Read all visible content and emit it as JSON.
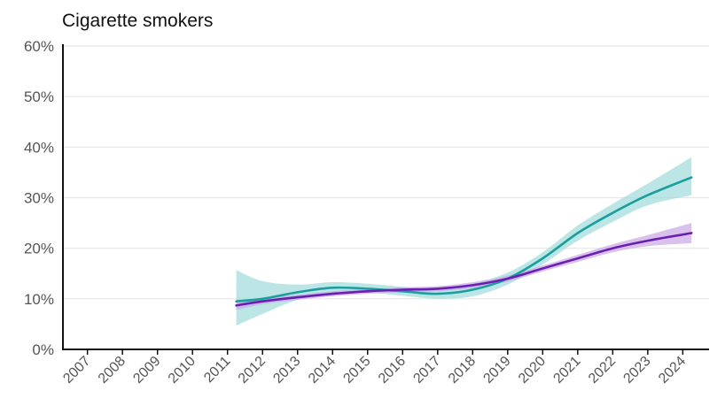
{
  "chart_data": {
    "type": "line",
    "title": "Cigarette smokers",
    "xlabel": "",
    "ylabel": "",
    "ylim": [
      0,
      60
    ],
    "grid": true,
    "legend": "none",
    "yticks": [
      "0%",
      "10%",
      "20%",
      "30%",
      "40%",
      "50%",
      "60%"
    ],
    "categories": [
      "2007",
      "2008",
      "2009",
      "2010",
      "2011",
      "2012",
      "2013",
      "2014",
      "2015",
      "2016",
      "2017",
      "2018",
      "2019",
      "2020",
      "2021",
      "2022",
      "2023",
      "2024"
    ],
    "series": [
      {
        "color": "#1a9e9e",
        "band_color": "#9fdcdc",
        "x": [
          2011.25,
          2012,
          2013,
          2014,
          2015,
          2016,
          2017,
          2018,
          2019,
          2020,
          2021,
          2022,
          2023,
          2024.25
        ],
        "values": [
          9.5,
          10.0,
          11.3,
          12.2,
          12.0,
          11.5,
          11.0,
          11.8,
          14.0,
          18.0,
          23.0,
          27.0,
          30.5,
          34.0
        ],
        "lower": [
          4.7,
          7.0,
          9.8,
          11.0,
          11.2,
          10.6,
          10.0,
          10.5,
          12.8,
          16.8,
          21.5,
          25.2,
          28.5,
          30.5
        ],
        "upper": [
          15.7,
          13.5,
          12.8,
          13.3,
          13.0,
          12.4,
          12.0,
          13.0,
          15.2,
          19.2,
          24.5,
          28.8,
          32.8,
          38.0
        ]
      },
      {
        "color": "#6a1fb0",
        "band_color": "#c7a8e6",
        "x": [
          2011.25,
          2012,
          2013,
          2014,
          2015,
          2016,
          2017,
          2018,
          2019,
          2020,
          2021,
          2022,
          2023,
          2024.25
        ],
        "values": [
          8.7,
          9.5,
          10.3,
          11.0,
          11.5,
          11.8,
          12.0,
          12.7,
          14.0,
          16.0,
          18.0,
          20.0,
          21.5,
          23.0
        ],
        "lower": [
          7.8,
          8.9,
          9.8,
          10.5,
          11.0,
          11.3,
          11.5,
          12.1,
          13.4,
          15.4,
          17.3,
          19.2,
          20.4,
          21.0
        ],
        "upper": [
          9.6,
          10.1,
          10.8,
          11.5,
          12.0,
          12.3,
          12.5,
          13.3,
          14.6,
          16.6,
          18.7,
          20.8,
          22.6,
          25.0
        ]
      }
    ]
  }
}
